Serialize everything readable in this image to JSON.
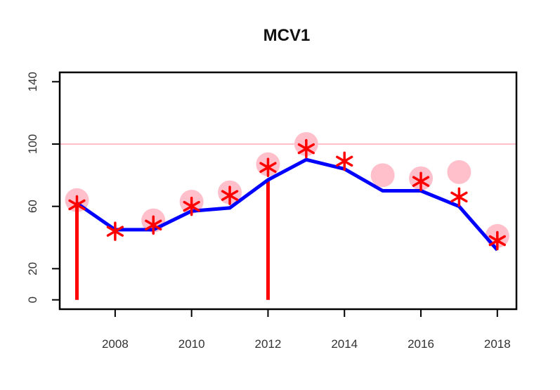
{
  "chart_data": {
    "type": "line",
    "title": "MCV1",
    "xlabel": "",
    "ylabel": "",
    "xlim": [
      2006.55,
      2018.5
    ],
    "ylim": [
      -6,
      146
    ],
    "x_ticks": [
      2008,
      2010,
      2012,
      2014,
      2016,
      2018
    ],
    "y_ticks": [
      0,
      20,
      60,
      100,
      140
    ],
    "grid": false,
    "legend": "none",
    "reference_line": {
      "value": 100,
      "color": "#ffc0cb"
    },
    "colors": {
      "line": "#0000ff",
      "star": "#ff0000",
      "circle": "#ffc0cb",
      "bar": "#ff0000",
      "axis": "#000000"
    },
    "series": [
      {
        "type": "line",
        "x": [
          2007,
          2008,
          2009,
          2010,
          2011,
          2012,
          2013,
          2014,
          2015,
          2016,
          2017,
          2018
        ],
        "values": [
          62,
          45,
          45,
          57,
          59,
          77,
          90,
          84,
          70,
          70,
          60,
          32
        ]
      },
      {
        "type": "scatter-star",
        "x": [
          2007,
          2008,
          2009,
          2010,
          2011,
          2012,
          2013,
          2014,
          2015,
          2016,
          2017,
          2018
        ],
        "values": [
          61,
          44,
          48,
          60,
          67,
          85,
          97,
          89,
          null,
          76,
          66,
          38
        ]
      },
      {
        "type": "scatter-circle",
        "x": [
          2007,
          2008,
          2009,
          2010,
          2011,
          2012,
          2013,
          2014,
          2015,
          2016,
          2017,
          2018
        ],
        "values": [
          64,
          null,
          51,
          63,
          69,
          87,
          100,
          null,
          80,
          78,
          82,
          41
        ]
      },
      {
        "type": "bar",
        "x": [
          2007,
          2012
        ],
        "values": [
          62,
          77
        ]
      }
    ]
  }
}
